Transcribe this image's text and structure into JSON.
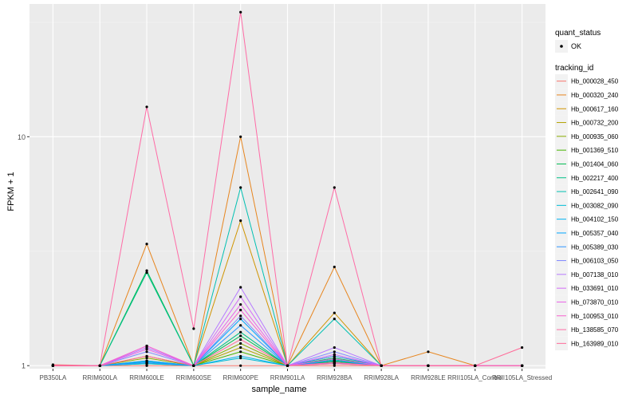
{
  "chart_data": {
    "type": "line",
    "xlabel": "sample_name",
    "ylabel": "FPKM + 1",
    "y_scale": "log",
    "ylim": [
      0.97,
      38
    ],
    "y_ticks": [
      {
        "value": 1,
        "label": "1"
      },
      {
        "value": 10,
        "label": "10"
      }
    ],
    "grid": true,
    "legend_position": "right",
    "categories": [
      "PB350LA",
      "RRIM600LA",
      "RRIM600LE",
      "RRIM600SE",
      "RRIM600PE",
      "RRIM901LA",
      "RRIM928BA",
      "RRIM928LA",
      "RRIM928LE",
      "RRII105LA_Control",
      "RRII105LA_Stressed"
    ],
    "legend_point": {
      "title": "quant_status",
      "label": "OK"
    },
    "legend_lines_title": "tracking_id",
    "series": [
      {
        "name": "Hb_000028_450",
        "color": "#F8766D",
        "values": [
          1.01,
          1,
          1,
          1,
          1,
          1,
          1,
          1,
          1,
          1,
          1
        ]
      },
      {
        "name": "Hb_000320_240",
        "color": "#E7851E",
        "values": [
          1,
          1,
          3.4,
          1,
          10,
          1,
          2.7,
          1,
          1.15,
          1,
          1
        ]
      },
      {
        "name": "Hb_000617_160",
        "color": "#D09400",
        "values": [
          1,
          1,
          1.1,
          1,
          4.3,
          1,
          1.7,
          1,
          1,
          1,
          1
        ]
      },
      {
        "name": "Hb_000732_200",
        "color": "#B2A100",
        "values": [
          1,
          1,
          1.05,
          1,
          1.2,
          1,
          1.1,
          1,
          1,
          1,
          1
        ]
      },
      {
        "name": "Hb_000935_060",
        "color": "#89AC00",
        "values": [
          1,
          1,
          1.08,
          1,
          1.25,
          1,
          1.05,
          1,
          1,
          1,
          1
        ]
      },
      {
        "name": "Hb_001369_510",
        "color": "#45B500",
        "values": [
          1,
          1,
          1.02,
          1,
          1.15,
          1,
          1.04,
          1,
          1,
          1,
          1
        ]
      },
      {
        "name": "Hb_001404_060",
        "color": "#00BC51",
        "values": [
          1,
          1,
          2.6,
          1,
          1.35,
          1,
          1.08,
          1,
          1,
          1,
          1
        ]
      },
      {
        "name": "Hb_002217_400",
        "color": "#00C087",
        "values": [
          1,
          1,
          2.55,
          1,
          1.4,
          1,
          1.06,
          1,
          1,
          1,
          1
        ]
      },
      {
        "name": "Hb_002641_090",
        "color": "#00C0B2",
        "values": [
          1,
          1,
          1.03,
          1,
          6,
          1,
          1.6,
          1,
          1,
          1,
          1
        ]
      },
      {
        "name": "Hb_003082_090",
        "color": "#00BCD6",
        "values": [
          1,
          1,
          1.02,
          1,
          1.08,
          1,
          1.02,
          1,
          1,
          1,
          1
        ]
      },
      {
        "name": "Hb_004102_150",
        "color": "#00B3F2",
        "values": [
          1,
          1,
          1.04,
          1,
          1.1,
          1,
          1.03,
          1,
          1,
          1,
          1
        ]
      },
      {
        "name": "Hb_005357_040",
        "color": "#00A6FF",
        "values": [
          1,
          1,
          1.05,
          1,
          1.6,
          1,
          1.05,
          1,
          1,
          1,
          1
        ]
      },
      {
        "name": "Hb_005389_030",
        "color": "#3197FF",
        "values": [
          1,
          1,
          1.03,
          1,
          1.5,
          1,
          1.1,
          1,
          1,
          1,
          1
        ]
      },
      {
        "name": "Hb_006103_050",
        "color": "#7F87FF",
        "values": [
          1,
          1,
          1.15,
          1,
          1.65,
          1,
          1.15,
          1,
          1,
          1,
          1
        ]
      },
      {
        "name": "Hb_007138_010",
        "color": "#B67AFF",
        "values": [
          1,
          1,
          1.2,
          1,
          2.2,
          1,
          1.2,
          1,
          1,
          1,
          1
        ]
      },
      {
        "name": "Hb_033691_010",
        "color": "#D36CF8",
        "values": [
          1,
          1,
          1.22,
          1,
          2.0,
          1,
          1.12,
          1,
          1,
          1,
          1
        ]
      },
      {
        "name": "Hb_073870_010",
        "color": "#EA62E8",
        "values": [
          1,
          1,
          1.18,
          1,
          1.85,
          1,
          1.07,
          1,
          1,
          1,
          1
        ]
      },
      {
        "name": "Hb_100953_010",
        "color": "#F862D0",
        "values": [
          1,
          1,
          1.22,
          1,
          1.75,
          1,
          1.03,
          1,
          1,
          1,
          1
        ]
      },
      {
        "name": "Hb_138585_070",
        "color": "#FF6BA6",
        "values": [
          1,
          1,
          13.5,
          1.45,
          35,
          1,
          6,
          1,
          1,
          1,
          1
        ]
      },
      {
        "name": "Hb_163989_010",
        "color": "#FF6A98",
        "values": [
          1,
          1,
          1.1,
          1,
          1.3,
          1,
          1.02,
          1,
          1,
          1,
          1.2
        ]
      }
    ]
  }
}
